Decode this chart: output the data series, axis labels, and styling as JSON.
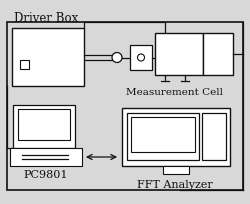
{
  "bg_color": "#d8d8d8",
  "line_color": "#111111",
  "fill_white": "#ffffff",
  "fill_bg": "#d8d8d8",
  "driver_box_label": "Driver Box",
  "measurement_cell_label": "Measurement Cell",
  "pc_label": "PC9801",
  "fft_label": "FFT Analyzer",
  "lw": 0.9
}
